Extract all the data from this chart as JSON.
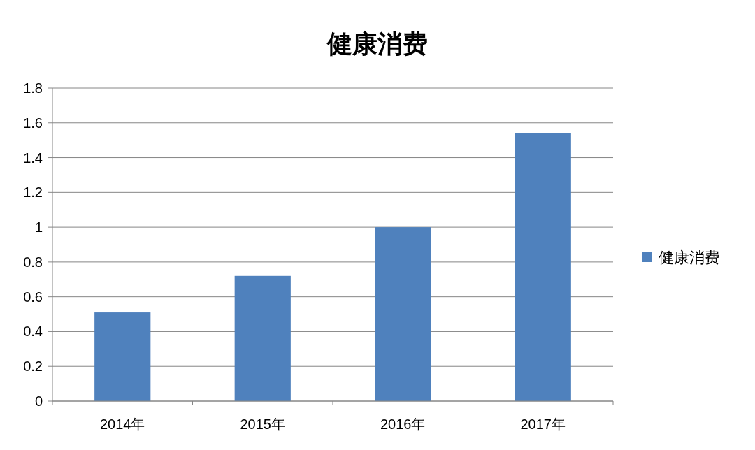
{
  "chart_data": {
    "type": "bar",
    "title": "健康消费",
    "categories": [
      "2014年",
      "2015年",
      "2016年",
      "2017年"
    ],
    "series": [
      {
        "name": "健康消费",
        "color": "#4f81bd",
        "values": [
          0.51,
          0.72,
          1.0,
          1.54
        ]
      }
    ],
    "ylim": [
      0,
      1.8
    ],
    "yticks": [
      0,
      0.2,
      0.4,
      0.6,
      0.8,
      1,
      1.2,
      1.4,
      1.6,
      1.8
    ],
    "grid": "y",
    "legend": "right"
  }
}
